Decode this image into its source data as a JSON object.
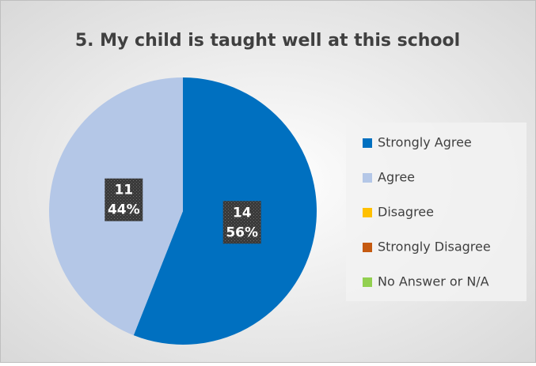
{
  "chart_data": {
    "type": "pie",
    "title": "5. My child is taught well at this school",
    "categories": [
      "Strongly Agree",
      "Agree",
      "Disagree",
      "Strongly Disagree",
      "No Answer or N/A"
    ],
    "values": [
      14,
      11,
      0,
      0,
      0
    ],
    "percent_labels": [
      "56%",
      "44%",
      null,
      null,
      null
    ],
    "colors": [
      "#0070c0",
      "#b4c7e7",
      "#ffc000",
      "#c55a11",
      "#92d050"
    ],
    "legend": "right"
  }
}
